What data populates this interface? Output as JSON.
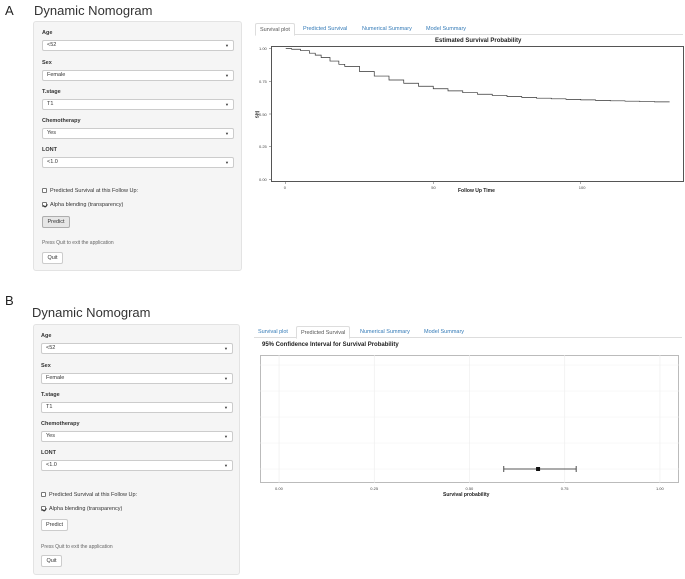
{
  "panels": [
    {
      "letter": "A",
      "title": "Dynamic Nomogram",
      "fields": [
        {
          "label": "Age",
          "value": "<52"
        },
        {
          "label": "Sex",
          "value": "Female"
        },
        {
          "label": "T.stage",
          "value": "T1"
        },
        {
          "label": "Chemotherapy",
          "value": "Yes"
        },
        {
          "label": "LONT",
          "value": "<1.0"
        }
      ],
      "checkbox_follow_up": {
        "label": "Predicted Survival at this Follow Up:",
        "checked": false
      },
      "checkbox_alpha": {
        "label": "Alpha blending (transparency)",
        "checked": true
      },
      "predict_label": "Predict",
      "quit_hint": "Press Quit to exit the application",
      "quit_label": "Quit",
      "tabs": [
        "Survival plot",
        "Predicted Survival",
        "Numerical Summary",
        "Model Summary"
      ],
      "active_tab": 0
    },
    {
      "letter": "B",
      "title": "Dynamic Nomogram",
      "fields": [
        {
          "label": "Age",
          "value": "<52"
        },
        {
          "label": "Sex",
          "value": "Female"
        },
        {
          "label": "T.stage",
          "value": "T1"
        },
        {
          "label": "Chemotherapy",
          "value": "Yes"
        },
        {
          "label": "LONT",
          "value": "<1.0"
        }
      ],
      "checkbox_follow_up": {
        "label": "Predicted Survival at this Follow Up:",
        "checked": false
      },
      "checkbox_alpha": {
        "label": "Alpha blending (transparency)",
        "checked": true
      },
      "predict_label": "Predict",
      "quit_hint": "Press Quit to exit the application",
      "quit_label": "Quit",
      "tabs": [
        "Survival plot",
        "Predicted Survival",
        "Numerical Summary",
        "Model Summary"
      ],
      "active_tab": 1
    }
  ],
  "chart_data": [
    {
      "type": "line",
      "title": "Estimated Survival Probability",
      "xlabel": "Follow Up Time",
      "ylabel": "S(t)",
      "x_ticks": [
        "0",
        "50",
        "100"
      ],
      "y_ticks": [
        "0.00",
        "0.25",
        "0.50",
        "0.75",
        "1.00"
      ],
      "xlim": [
        -5,
        135
      ],
      "ylim": [
        -0.02,
        1.02
      ],
      "grid": false,
      "series": [
        {
          "x": [
            0,
            2,
            5,
            8,
            10,
            12,
            15,
            18,
            20,
            25,
            30,
            35,
            40,
            45,
            50,
            55,
            60,
            65,
            70,
            75,
            80,
            85,
            90,
            95,
            100,
            105,
            110,
            115,
            120,
            125,
            130
          ],
          "y": [
            1.0,
            0.995,
            0.985,
            0.965,
            0.95,
            0.932,
            0.905,
            0.88,
            0.864,
            0.825,
            0.79,
            0.76,
            0.735,
            0.712,
            0.693,
            0.677,
            0.663,
            0.651,
            0.642,
            0.634,
            0.627,
            0.621,
            0.616,
            0.612,
            0.608,
            0.604,
            0.601,
            0.598,
            0.595,
            0.593,
            0.59
          ]
        }
      ]
    },
    {
      "type": "scatter",
      "title": "95% Confidence Interval for Survival Probability",
      "xlabel": "Survival probability",
      "x_ticks": [
        "0.00",
        "0.25",
        "0.50",
        "0.75",
        "1.00"
      ],
      "xlim": [
        -0.05,
        1.05
      ],
      "grid": true,
      "point": {
        "estimate": 0.68,
        "lower": 0.59,
        "upper": 0.78
      }
    }
  ]
}
